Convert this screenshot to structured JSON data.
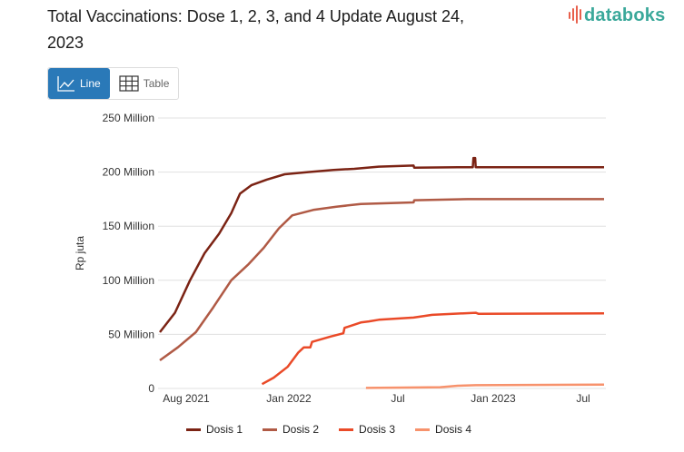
{
  "header": {
    "title": "Total Vaccinations: Dose 1, 2, 3, and 4 Update August 24, 2023",
    "logo_text": "databoks",
    "logo_colors": {
      "bars": "#e8604c",
      "text": "#3aa89a"
    }
  },
  "toggle": {
    "line_label": "Line",
    "table_label": "Table",
    "active": "line",
    "active_color": "#2a79b8"
  },
  "legend": [
    {
      "label": "Dosis 1",
      "color": "#7b2314"
    },
    {
      "label": "Dosis 2",
      "color": "#b05a45"
    },
    {
      "label": "Dosis 3",
      "color": "#ea4a28"
    },
    {
      "label": "Dosis 4",
      "color": "#f7926c"
    }
  ],
  "chart_data": {
    "type": "line",
    "title": "Total Vaccinations: Dose 1, 2, 3, and 4 Update August 24, 2023",
    "xlabel": "",
    "ylabel": "Rp juta",
    "ylim": [
      0,
      250000000
    ],
    "yticks": [
      {
        "value": 0,
        "label": "0"
      },
      {
        "value": 50000000,
        "label": "50 Million"
      },
      {
        "value": 100000000,
        "label": "100 Million"
      },
      {
        "value": 150000000,
        "label": "150 Million"
      },
      {
        "value": 200000000,
        "label": "200 Million"
      },
      {
        "value": 250000000,
        "label": "250 Million"
      }
    ],
    "xticks": [
      {
        "date": "2021-08",
        "label": "Aug 2021"
      },
      {
        "date": "2022-01",
        "label": "Jan 2022"
      },
      {
        "date": "2022-07",
        "label": "Jul"
      },
      {
        "date": "2023-01",
        "label": "Jan 2023"
      },
      {
        "date": "2023-07",
        "label": "Jul"
      }
    ],
    "grid": true,
    "legend_position": "bottom",
    "series": [
      {
        "name": "Dosis 1",
        "color": "#7b2314",
        "points": [
          [
            "2021-07-20",
            52
          ],
          [
            "2021-08-15",
            70
          ],
          [
            "2021-09-10",
            100
          ],
          [
            "2021-10-05",
            125
          ],
          [
            "2021-10-30",
            143
          ],
          [
            "2021-11-20",
            162
          ],
          [
            "2021-12-05",
            180
          ],
          [
            "2021-12-25",
            188
          ],
          [
            "2022-01-20",
            193
          ],
          [
            "2022-02-20",
            198
          ],
          [
            "2022-04-01",
            200
          ],
          [
            "2022-05-15",
            202
          ],
          [
            "2022-06-20",
            203
          ],
          [
            "2022-08-01",
            205
          ],
          [
            "2022-09-30",
            206
          ],
          [
            "2022-10-01",
            204
          ],
          [
            "2022-12-15",
            204.5
          ],
          [
            "2023-01-10",
            204.5
          ],
          [
            "2023-01-11",
            213
          ],
          [
            "2023-01-14",
            213
          ],
          [
            "2023-01-15",
            204.5
          ],
          [
            "2023-08-24",
            204.5
          ]
        ]
      },
      {
        "name": "Dosis 2",
        "color": "#b05a45",
        "points": [
          [
            "2021-07-20",
            26
          ],
          [
            "2021-08-20",
            38
          ],
          [
            "2021-09-20",
            52
          ],
          [
            "2021-10-20",
            75
          ],
          [
            "2021-11-20",
            100
          ],
          [
            "2021-12-20",
            115
          ],
          [
            "2022-01-15",
            130
          ],
          [
            "2022-02-10",
            148
          ],
          [
            "2022-03-05",
            160
          ],
          [
            "2022-04-10",
            165
          ],
          [
            "2022-05-20",
            168
          ],
          [
            "2022-07-01",
            170.5
          ],
          [
            "2022-09-30",
            172
          ],
          [
            "2022-10-01",
            174
          ],
          [
            "2023-01-01",
            175
          ],
          [
            "2023-08-24",
            175
          ]
        ]
      },
      {
        "name": "Dosis 3",
        "color": "#ea4a28",
        "points": [
          [
            "2022-01-12",
            4
          ],
          [
            "2022-02-01",
            10
          ],
          [
            "2022-02-25",
            20
          ],
          [
            "2022-03-15",
            33
          ],
          [
            "2022-03-25",
            38
          ],
          [
            "2022-04-05",
            38
          ],
          [
            "2022-04-08",
            43
          ],
          [
            "2022-05-10",
            48
          ],
          [
            "2022-06-01",
            51
          ],
          [
            "2022-06-03",
            56
          ],
          [
            "2022-06-20",
            59
          ],
          [
            "2022-07-01",
            61
          ],
          [
            "2022-07-15",
            62
          ],
          [
            "2022-08-01",
            63.5
          ],
          [
            "2022-09-30",
            65.5
          ],
          [
            "2022-11-01",
            68
          ],
          [
            "2023-01-15",
            70
          ],
          [
            "2023-01-20",
            69
          ],
          [
            "2023-08-24",
            69.5
          ]
        ]
      },
      {
        "name": "Dosis 4",
        "color": "#f7926c",
        "points": [
          [
            "2022-07-10",
            0.5
          ],
          [
            "2022-09-15",
            0.8
          ],
          [
            "2022-11-15",
            1.2
          ],
          [
            "2022-12-15",
            2.5
          ],
          [
            "2023-01-15",
            3
          ],
          [
            "2023-08-24",
            3.5
          ]
        ]
      }
    ],
    "units_note": "values in millions"
  }
}
